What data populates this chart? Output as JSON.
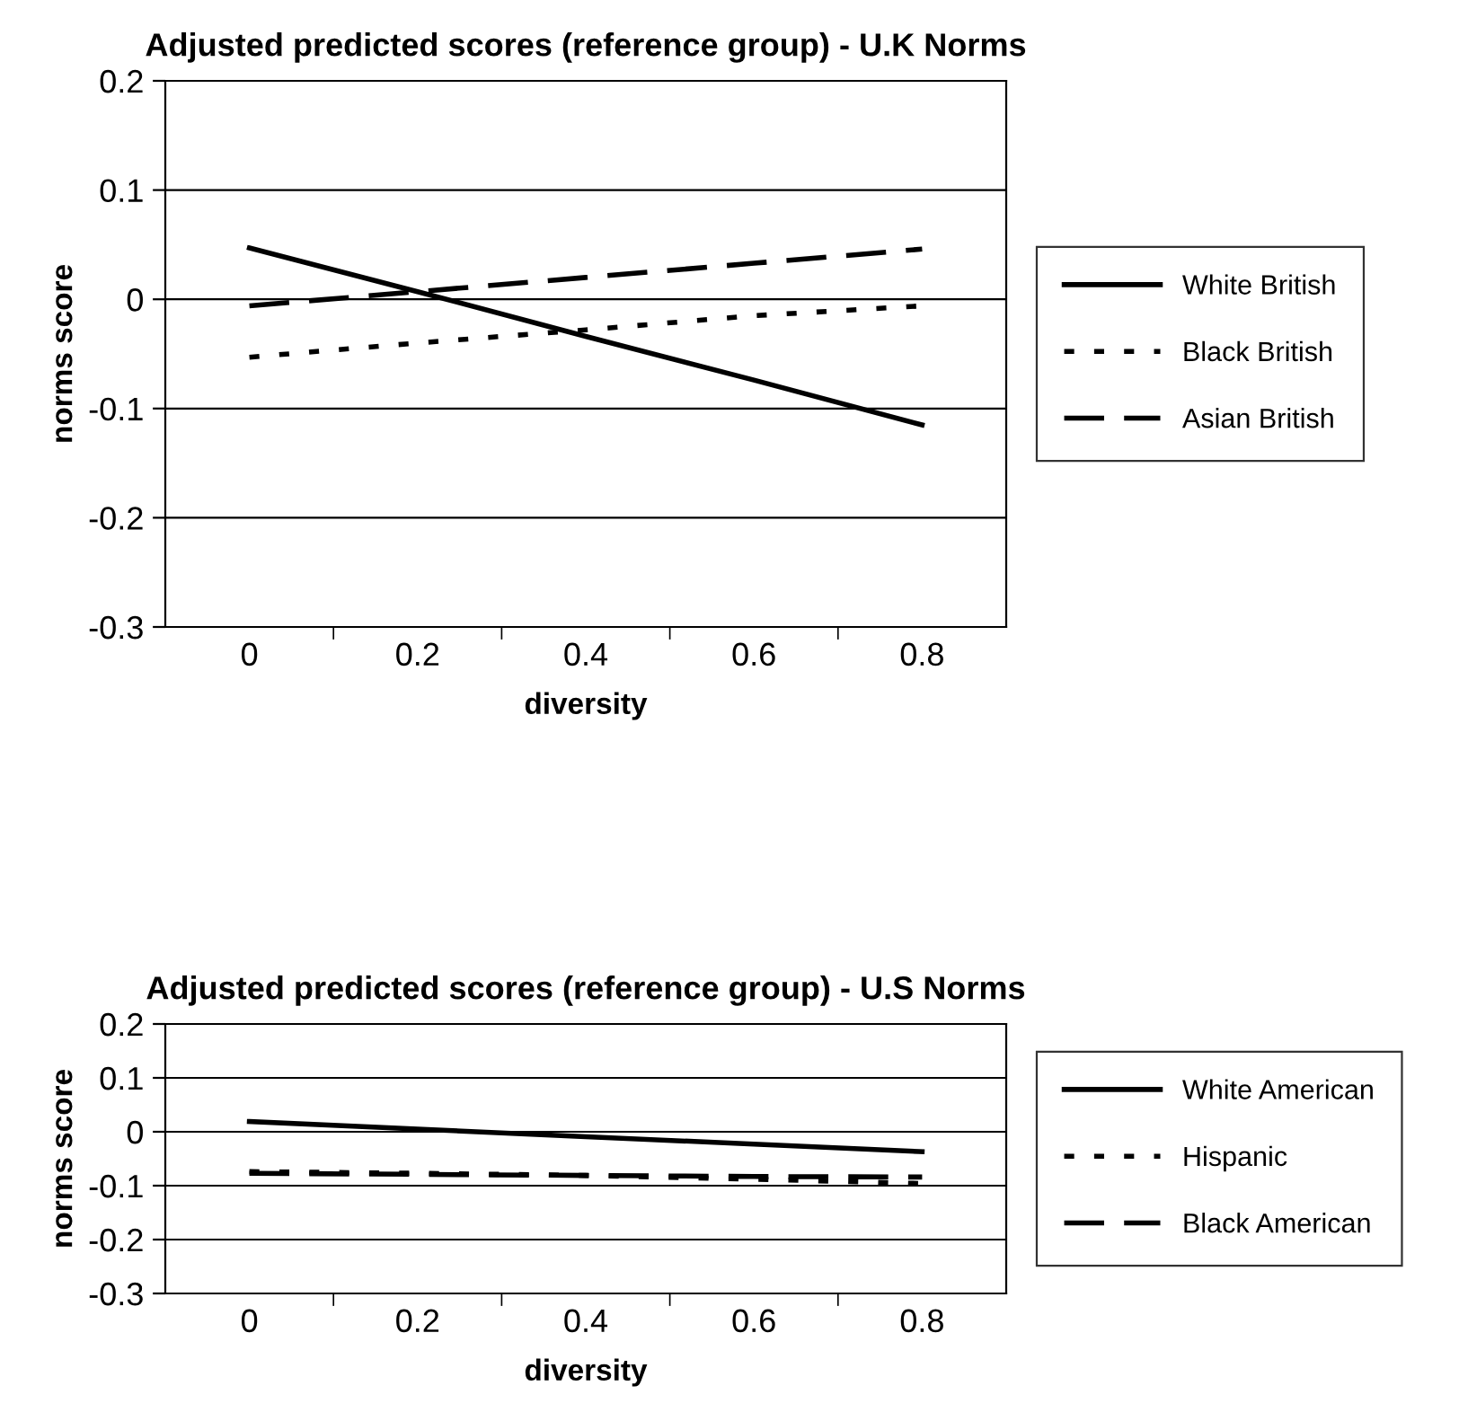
{
  "chart_data": [
    {
      "type": "line",
      "title": "Adjusted predicted scores (reference group) - U.K Norms",
      "xlabel": "diversity",
      "ylabel": "norms score",
      "categories": [
        "0",
        "0.2",
        "0.4",
        "0.6",
        "0.8"
      ],
      "series": [
        {
          "name": "White British",
          "color": "#000000",
          "line_style": "solid",
          "values": [
            0.047,
            0.007,
            -0.034,
            -0.074,
            -0.115
          ]
        },
        {
          "name": "Black British",
          "color": "#000000",
          "line_style": "dotted",
          "values": [
            -0.053,
            -0.04,
            -0.028,
            -0.015,
            -0.006
          ]
        },
        {
          "name": "Asian British",
          "color": "#000000",
          "line_style": "dashed",
          "values": [
            -0.006,
            0.007,
            0.02,
            0.033,
            0.046
          ]
        }
      ],
      "ylim": [
        -0.3,
        0.2
      ],
      "yticks": [
        -0.3,
        -0.2,
        -0.1,
        0,
        0.1,
        0.2
      ],
      "grid": "y",
      "legend": "right",
      "marker": "none"
    },
    {
      "type": "line",
      "title": "Adjusted predicted scores (reference group) - U.S Norms",
      "xlabel": "diversity",
      "ylabel": "norms score",
      "categories": [
        "0",
        "0.2",
        "0.4",
        "0.6",
        "0.8"
      ],
      "series": [
        {
          "name": "White American",
          "color": "#000000",
          "line_style": "solid",
          "values": [
            0.019,
            0.005,
            -0.009,
            -0.023,
            -0.037
          ]
        },
        {
          "name": "Hispanic",
          "color": "#000000",
          "line_style": "dotted",
          "values": [
            -0.074,
            -0.077,
            -0.081,
            -0.088,
            -0.096
          ]
        },
        {
          "name": "Black American",
          "color": "#000000",
          "line_style": "dashed",
          "values": [
            -0.077,
            -0.079,
            -0.081,
            -0.083,
            -0.084
          ]
        }
      ],
      "ylim": [
        -0.3,
        0.2
      ],
      "yticks": [
        -0.3,
        -0.2,
        -0.1,
        0,
        0.1,
        0.2
      ],
      "grid": "y",
      "legend": "right",
      "marker": "none"
    }
  ]
}
